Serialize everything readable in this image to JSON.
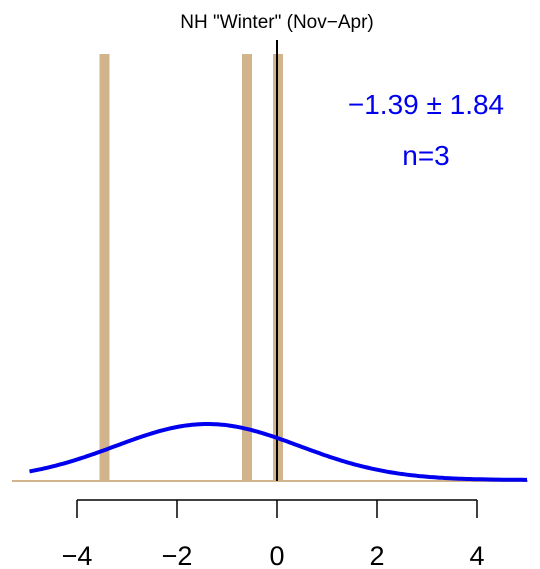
{
  "chart_data": {
    "type": "histogram",
    "title": "NH \"Winter\" (Nov−Apr)",
    "xlabel": "",
    "ylabel": "",
    "xlim": [
      -5.5,
      5.0
    ],
    "x_ticks": [
      -4,
      -2,
      0,
      2,
      4
    ],
    "x_tick_labels": [
      "−4",
      "−2",
      "0",
      "2",
      "4"
    ],
    "bars": [
      {
        "x": -3.45,
        "width": 0.2
      },
      {
        "x": -0.6,
        "width": 0.2
      },
      {
        "x": 0.02,
        "width": 0.2
      }
    ],
    "bar_color": "#d2b48c",
    "reference_line_x": 0,
    "normal_curve": {
      "mean": -1.39,
      "sd": 1.84,
      "color": "#0000ee"
    },
    "annotation": {
      "stat_text": "−1.39 ± 1.84",
      "n_text": "n=3",
      "color": "#0000ee"
    }
  }
}
